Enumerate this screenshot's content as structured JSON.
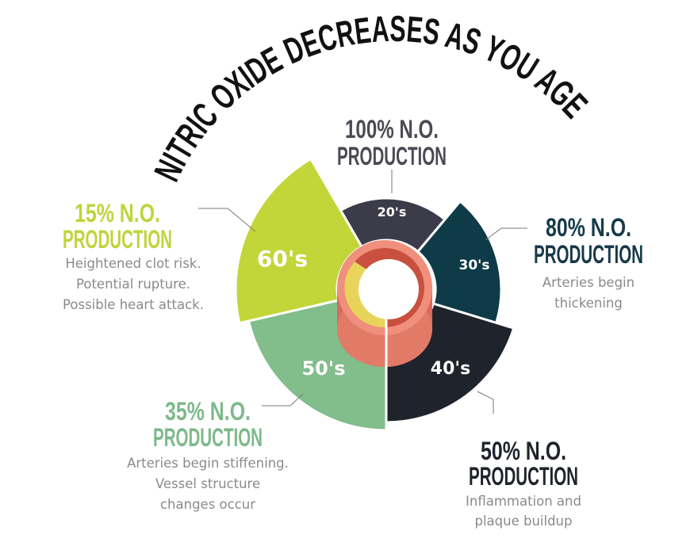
{
  "title": "NITRIC OXIDE DECREASES AS YOU AGE",
  "segments": [
    {
      "age": "20's",
      "heading": [
        "100% N.O.",
        "PRODUCTION"
      ],
      "description": [],
      "color": "#3b3b49",
      "headingColor": "#4a4a55"
    },
    {
      "age": "30's",
      "heading": [
        "80% N.O.",
        "PRODUCTION"
      ],
      "description": [
        "Arteries begin",
        "thickening"
      ],
      "color": "#0f3b48",
      "headingColor": "#16394a"
    },
    {
      "age": "40's",
      "heading": [
        "50% N.O.",
        "PRODUCTION"
      ],
      "description": [
        "Inflammation and",
        "plaque buildup"
      ],
      "color": "#1f232b",
      "headingColor": "#1f232b"
    },
    {
      "age": "50's",
      "heading": [
        "35% N.O.",
        "PRODUCTION"
      ],
      "description": [
        "Arteries begin stiffening.",
        "Vessel structure",
        "changes occur"
      ],
      "color": "#82bd8c",
      "headingColor": "#7db98a"
    },
    {
      "age": "60's",
      "heading": [
        "15% N.O.",
        "PRODUCTION"
      ],
      "description": [
        "Heightened clot risk.",
        "Potential rupture.",
        "Possible heart attack."
      ],
      "color": "#c2d63a",
      "headingColor": "#bfd43c"
    }
  ],
  "artery_icon": "artery-cross-section",
  "colors": {
    "artery": "#e8826f",
    "artery_dark": "#d96a5c",
    "plaque": "#e8d45a"
  }
}
